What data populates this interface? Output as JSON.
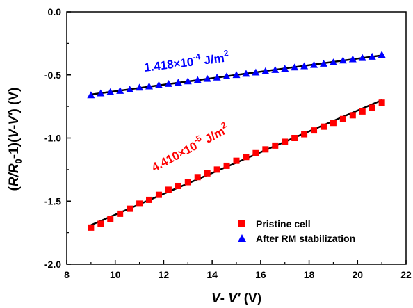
{
  "chart_data": {
    "type": "scatter",
    "xlabel_parts": [
      "V",
      "-",
      " V'",
      " (V)"
    ],
    "ylabel_parts": [
      "(",
      "R/R",
      "0",
      "-1)(",
      "V",
      "-",
      "V'",
      ") (V)"
    ],
    "xlim": [
      8,
      22
    ],
    "ylim": [
      -2.0,
      0.0
    ],
    "xticks": [
      "8",
      "10",
      "12",
      "14",
      "16",
      "18",
      "20",
      "22"
    ],
    "yticks": [
      "0.0",
      "-0.5",
      "-1.0",
      "-1.5",
      "-2.0"
    ],
    "legend_position": "bottom-right",
    "series": [
      {
        "name": "Pristine cell",
        "marker": "square",
        "color": "#ff0000",
        "x": [
          9.0,
          9.4,
          9.8,
          10.2,
          10.6,
          11.0,
          11.4,
          11.8,
          12.2,
          12.6,
          13.0,
          13.4,
          13.8,
          14.2,
          14.6,
          15.0,
          15.4,
          15.8,
          16.2,
          16.6,
          17.0,
          17.4,
          17.8,
          18.2,
          18.6,
          19.0,
          19.4,
          19.8,
          20.2,
          20.6,
          21.0
        ],
        "y": [
          -1.71,
          -1.68,
          -1.64,
          -1.6,
          -1.56,
          -1.52,
          -1.49,
          -1.45,
          -1.41,
          -1.38,
          -1.35,
          -1.31,
          -1.28,
          -1.25,
          -1.22,
          -1.18,
          -1.15,
          -1.12,
          -1.09,
          -1.06,
          -1.03,
          -1.0,
          -0.97,
          -0.94,
          -0.91,
          -0.88,
          -0.85,
          -0.82,
          -0.79,
          -0.76,
          -0.72
        ],
        "fit": {
          "x": [
            9.0,
            21.0
          ],
          "y": [
            -1.69,
            -0.7
          ]
        },
        "annotation": {
          "base": "4.410×10",
          "exp": "-5",
          "unit": " J/m",
          "unit_exp": "2",
          "color": "#ff0000"
        }
      },
      {
        "name": "After RM stabilization",
        "marker": "triangle",
        "color": "#0000ff",
        "x": [
          9.0,
          9.4,
          9.8,
          10.2,
          10.6,
          11.0,
          11.4,
          11.8,
          12.2,
          12.6,
          13.0,
          13.4,
          13.8,
          14.2,
          14.6,
          15.0,
          15.4,
          15.8,
          16.2,
          16.6,
          17.0,
          17.4,
          17.8,
          18.2,
          18.6,
          19.0,
          19.4,
          19.8,
          20.2,
          20.6,
          21.0
        ],
        "y": [
          -0.66,
          -0.645,
          -0.635,
          -0.625,
          -0.615,
          -0.6,
          -0.59,
          -0.58,
          -0.57,
          -0.56,
          -0.55,
          -0.54,
          -0.53,
          -0.52,
          -0.51,
          -0.5,
          -0.49,
          -0.48,
          -0.47,
          -0.46,
          -0.45,
          -0.44,
          -0.43,
          -0.42,
          -0.41,
          -0.4,
          -0.385,
          -0.375,
          -0.365,
          -0.355,
          -0.34
        ],
        "fit": {
          "x": [
            9.0,
            21.0
          ],
          "y": [
            -0.655,
            -0.345
          ]
        },
        "annotation": {
          "base": "1.418×10",
          "exp": "-4",
          "unit": " J/m",
          "unit_exp": "2",
          "color": "#0000ff"
        }
      }
    ]
  }
}
